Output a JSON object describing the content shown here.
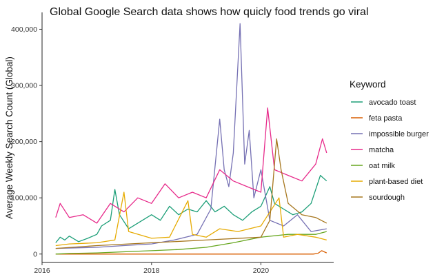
{
  "chart_data": {
    "type": "line",
    "title": "Global Google Search data shows how quicly food trends go viral",
    "xlabel": "",
    "ylabel": "Average Weekly Search Count (Global)",
    "xlim": [
      "2016-01-01",
      "2021-05-01"
    ],
    "ylim": [
      -15000,
      430000
    ],
    "x_ticks": [
      "2016-01-01",
      "2018-01-01",
      "2020-01-01"
    ],
    "x_tick_labels": [
      "2016",
      "2018",
      "2020"
    ],
    "y_ticks": [
      0,
      100000,
      200000,
      300000,
      400000
    ],
    "y_tick_labels": [
      "0",
      "100,000",
      "200,000",
      "300,000",
      "400,000"
    ],
    "grid": false,
    "legend": {
      "title": "Keyword",
      "position": "right"
    },
    "series": [
      {
        "name": "avocado toast",
        "color": "#1B9E77",
        "points": [
          [
            "2016-04-01",
            20000
          ],
          [
            "2016-05-01",
            30000
          ],
          [
            "2016-06-01",
            25000
          ],
          [
            "2016-07-01",
            32000
          ],
          [
            "2016-09-01",
            22000
          ],
          [
            "2016-11-01",
            28000
          ],
          [
            "2017-01-01",
            35000
          ],
          [
            "2017-02-01",
            50000
          ],
          [
            "2017-04-01",
            60000
          ],
          [
            "2017-05-01",
            115000
          ],
          [
            "2017-06-01",
            70000
          ],
          [
            "2017-08-01",
            45000
          ],
          [
            "2017-10-01",
            55000
          ],
          [
            "2018-01-01",
            70000
          ],
          [
            "2018-03-01",
            60000
          ],
          [
            "2018-05-01",
            85000
          ],
          [
            "2018-07-01",
            70000
          ],
          [
            "2018-09-01",
            80000
          ],
          [
            "2018-11-01",
            75000
          ],
          [
            "2019-01-01",
            95000
          ],
          [
            "2019-03-01",
            75000
          ],
          [
            "2019-05-01",
            85000
          ],
          [
            "2019-07-01",
            70000
          ],
          [
            "2019-09-01",
            60000
          ],
          [
            "2019-11-01",
            75000
          ],
          [
            "2020-01-01",
            85000
          ],
          [
            "2020-03-01",
            120000
          ],
          [
            "2020-04-01",
            90000
          ],
          [
            "2020-06-01",
            80000
          ],
          [
            "2020-08-01",
            70000
          ],
          [
            "2020-10-01",
            75000
          ],
          [
            "2020-12-01",
            90000
          ],
          [
            "2021-02-01",
            140000
          ],
          [
            "2021-03-15",
            130000
          ]
        ]
      },
      {
        "name": "feta pasta",
        "color": "#D95F02",
        "points": [
          [
            "2016-04-01",
            0
          ],
          [
            "2017-01-01",
            0
          ],
          [
            "2018-01-01",
            0
          ],
          [
            "2019-01-01",
            0
          ],
          [
            "2020-01-01",
            0
          ],
          [
            "2020-12-15",
            0
          ],
          [
            "2021-01-15",
            1000
          ],
          [
            "2021-02-10",
            6000
          ],
          [
            "2021-03-15",
            2000
          ]
        ]
      },
      {
        "name": "impossible burger",
        "color": "#7570B3",
        "points": [
          [
            "2016-04-01",
            10000
          ],
          [
            "2017-01-01",
            12000
          ],
          [
            "2017-07-01",
            15000
          ],
          [
            "2018-01-01",
            18000
          ],
          [
            "2018-06-01",
            25000
          ],
          [
            "2018-11-01",
            35000
          ],
          [
            "2019-02-01",
            80000
          ],
          [
            "2019-04-01",
            240000
          ],
          [
            "2019-05-01",
            150000
          ],
          [
            "2019-06-01",
            120000
          ],
          [
            "2019-07-01",
            180000
          ],
          [
            "2019-08-15",
            410000
          ],
          [
            "2019-09-15",
            160000
          ],
          [
            "2019-10-15",
            220000
          ],
          [
            "2019-11-15",
            100000
          ],
          [
            "2020-01-01",
            150000
          ],
          [
            "2020-03-01",
            60000
          ],
          [
            "2020-06-01",
            50000
          ],
          [
            "2020-09-01",
            70000
          ],
          [
            "2020-12-01",
            40000
          ],
          [
            "2021-03-15",
            45000
          ]
        ]
      },
      {
        "name": "matcha",
        "color": "#E7298A",
        "points": [
          [
            "2016-04-01",
            65000
          ],
          [
            "2016-05-01",
            90000
          ],
          [
            "2016-07-01",
            65000
          ],
          [
            "2016-10-01",
            70000
          ],
          [
            "2017-01-01",
            55000
          ],
          [
            "2017-04-01",
            90000
          ],
          [
            "2017-07-01",
            75000
          ],
          [
            "2017-10-01",
            100000
          ],
          [
            "2018-01-01",
            90000
          ],
          [
            "2018-04-01",
            125000
          ],
          [
            "2018-07-01",
            100000
          ],
          [
            "2018-10-01",
            110000
          ],
          [
            "2019-01-01",
            100000
          ],
          [
            "2019-04-01",
            150000
          ],
          [
            "2019-07-01",
            130000
          ],
          [
            "2019-10-01",
            120000
          ],
          [
            "2020-01-01",
            110000
          ],
          [
            "2020-02-15",
            260000
          ],
          [
            "2020-04-01",
            150000
          ],
          [
            "2020-07-01",
            140000
          ],
          [
            "2020-10-01",
            130000
          ],
          [
            "2021-01-01",
            160000
          ],
          [
            "2021-02-15",
            205000
          ],
          [
            "2021-03-15",
            180000
          ]
        ]
      },
      {
        "name": "oat milk",
        "color": "#66A61E",
        "points": [
          [
            "2016-04-01",
            0
          ],
          [
            "2016-07-01",
            1000
          ],
          [
            "2017-01-01",
            2000
          ],
          [
            "2017-07-01",
            4000
          ],
          [
            "2018-01-01",
            6000
          ],
          [
            "2018-07-01",
            8000
          ],
          [
            "2019-01-01",
            12000
          ],
          [
            "2019-07-01",
            20000
          ],
          [
            "2020-01-01",
            30000
          ],
          [
            "2020-07-01",
            35000
          ],
          [
            "2021-01-01",
            35000
          ],
          [
            "2021-03-15",
            40000
          ]
        ]
      },
      {
        "name": "plant-based diet",
        "color": "#E6AB02",
        "points": [
          [
            "2016-04-01",
            15000
          ],
          [
            "2016-07-01",
            18000
          ],
          [
            "2017-01-01",
            20000
          ],
          [
            "2017-05-01",
            25000
          ],
          [
            "2017-07-01",
            110000
          ],
          [
            "2017-08-01",
            40000
          ],
          [
            "2018-01-01",
            28000
          ],
          [
            "2018-05-01",
            30000
          ],
          [
            "2018-09-01",
            95000
          ],
          [
            "2018-10-01",
            35000
          ],
          [
            "2019-01-01",
            30000
          ],
          [
            "2019-04-01",
            45000
          ],
          [
            "2019-08-01",
            40000
          ],
          [
            "2020-01-01",
            50000
          ],
          [
            "2020-05-01",
            100000
          ],
          [
            "2020-06-01",
            30000
          ],
          [
            "2020-09-01",
            35000
          ],
          [
            "2021-01-01",
            30000
          ],
          [
            "2021-03-15",
            25000
          ]
        ]
      },
      {
        "name": "sourdough",
        "color": "#A6761D",
        "points": [
          [
            "2016-04-01",
            10000
          ],
          [
            "2017-01-01",
            15000
          ],
          [
            "2018-01-01",
            20000
          ],
          [
            "2019-01-01",
            25000
          ],
          [
            "2020-01-01",
            30000
          ],
          [
            "2020-03-01",
            60000
          ],
          [
            "2020-04-15",
            205000
          ],
          [
            "2020-05-15",
            150000
          ],
          [
            "2020-07-01",
            90000
          ],
          [
            "2020-10-01",
            70000
          ],
          [
            "2021-01-01",
            65000
          ],
          [
            "2021-03-15",
            55000
          ]
        ]
      }
    ]
  }
}
